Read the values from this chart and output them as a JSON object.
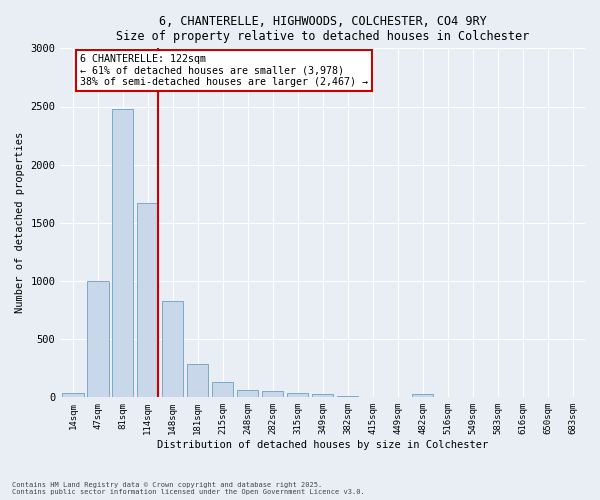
{
  "title1": "6, CHANTERELLE, HIGHWOODS, COLCHESTER, CO4 9RY",
  "title2": "Size of property relative to detached houses in Colchester",
  "xlabel": "Distribution of detached houses by size in Colchester",
  "ylabel": "Number of detached properties",
  "categories": [
    "14sqm",
    "47sqm",
    "81sqm",
    "114sqm",
    "148sqm",
    "181sqm",
    "215sqm",
    "248sqm",
    "282sqm",
    "315sqm",
    "349sqm",
    "382sqm",
    "415sqm",
    "449sqm",
    "482sqm",
    "516sqm",
    "549sqm",
    "583sqm",
    "616sqm",
    "650sqm",
    "683sqm"
  ],
  "values": [
    40,
    1000,
    2480,
    1670,
    830,
    290,
    130,
    60,
    55,
    40,
    30,
    15,
    0,
    0,
    25,
    0,
    0,
    0,
    0,
    0,
    0
  ],
  "bar_color": "#c8d8ea",
  "bar_edge_color": "#7aaac8",
  "vline_color": "#cc0000",
  "vline_x": 3.42,
  "annotation_text": "6 CHANTERELLE: 122sqm\n← 61% of detached houses are smaller (3,978)\n38% of semi-detached houses are larger (2,467) →",
  "annotation_box_color": "#ffffff",
  "annotation_box_edge": "#cc0000",
  "ylim": [
    0,
    3000
  ],
  "yticks": [
    0,
    500,
    1000,
    1500,
    2000,
    2500,
    3000
  ],
  "footer1": "Contains HM Land Registry data © Crown copyright and database right 2025.",
  "footer2": "Contains public sector information licensed under the Open Government Licence v3.0.",
  "bg_color": "#e8eef4",
  "plot_bg_color": "#e8eef4"
}
